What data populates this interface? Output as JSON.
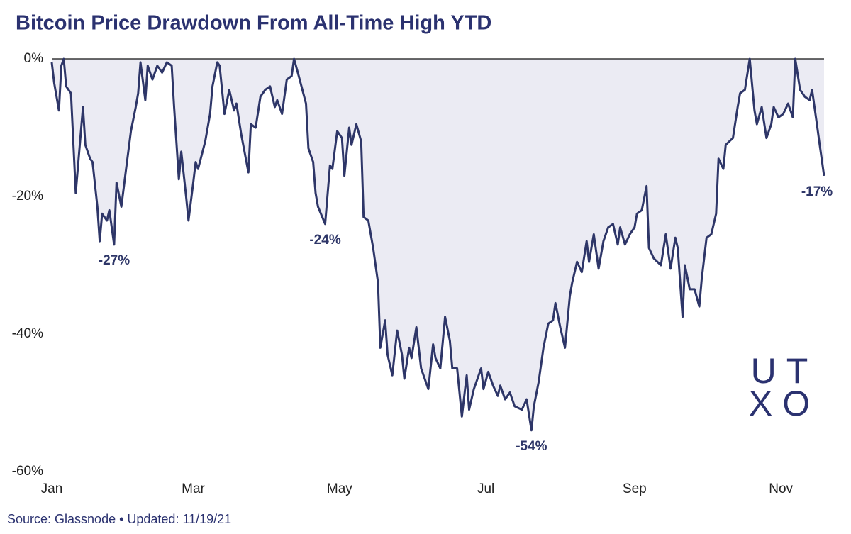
{
  "chart_data": {
    "type": "area",
    "title": "Bitcoin Price Drawdown From All-Time High YTD",
    "source": "Source: Glassnode • Updated: 11/19/21",
    "logo": [
      "UT",
      "XO"
    ],
    "color": "#2e3668",
    "fill": "#ebebf3",
    "xlim": [
      0,
      322
    ],
    "ylim": [
      -60,
      0
    ],
    "xticks": [
      {
        "value": 0,
        "label": "Jan"
      },
      {
        "value": 59,
        "label": "Mar"
      },
      {
        "value": 120,
        "label": "May"
      },
      {
        "value": 181,
        "label": "Jul"
      },
      {
        "value": 243,
        "label": "Sep"
      },
      {
        "value": 304,
        "label": "Nov"
      }
    ],
    "yticks": [
      {
        "value": 0,
        "label": "0%"
      },
      {
        "value": -20,
        "label": "-20%"
      },
      {
        "value": -40,
        "label": "-40%"
      },
      {
        "value": -60,
        "label": "-60%"
      }
    ],
    "x": [
      0,
      1,
      3,
      4,
      5,
      6,
      8,
      10,
      13,
      14,
      16,
      17,
      19,
      20,
      21,
      23,
      24,
      26,
      27,
      29,
      31,
      33,
      35,
      36,
      37,
      39,
      40,
      42,
      44,
      46,
      48,
      50,
      51,
      53,
      54,
      56,
      57,
      59,
      60,
      61,
      64,
      66,
      67,
      69,
      70,
      72,
      74,
      76,
      77,
      79,
      82,
      83,
      85,
      87,
      89,
      91,
      93,
      94,
      96,
      98,
      100,
      101,
      103,
      106,
      107,
      109,
      110,
      111,
      114,
      116,
      117,
      119,
      121,
      122,
      124,
      125,
      127,
      129,
      130,
      132,
      134,
      136,
      137,
      139,
      140,
      142,
      144,
      146,
      147,
      149,
      150,
      152,
      154,
      157,
      159,
      160,
      162,
      164,
      166,
      167,
      169,
      171,
      173,
      174,
      176,
      179,
      180,
      182,
      184,
      186,
      187,
      189,
      191,
      193,
      196,
      198,
      200,
      201,
      203,
      205,
      207,
      209,
      210,
      212,
      214,
      216,
      217,
      219,
      221,
      223,
      224,
      226,
      228,
      230,
      232,
      234,
      236,
      237,
      239,
      241,
      243,
      244,
      246,
      248,
      249,
      251,
      254,
      256,
      258,
      260,
      261,
      263,
      264,
      266,
      268,
      270,
      271,
      273,
      275,
      277,
      278,
      280,
      281,
      284,
      286,
      287,
      289,
      291,
      293,
      294,
      296,
      298,
      300,
      301,
      303,
      305,
      307,
      309,
      310,
      312,
      314,
      316,
      317,
      319,
      320,
      322
    ],
    "values": [
      -0.5,
      -3.5,
      -7.5,
      -1,
      0,
      -4,
      -5,
      -19.5,
      -7,
      -12.5,
      -14.5,
      -15,
      -21.5,
      -26.5,
      -22.5,
      -23.5,
      -22,
      -27,
      -18,
      -21.5,
      -16,
      -10.5,
      -7,
      -5,
      -0.5,
      -6,
      -1,
      -3,
      -1,
      -2,
      -0.5,
      -1,
      -7,
      -17.5,
      -13.5,
      -20,
      -23.5,
      -18,
      -15,
      -16,
      -12,
      -8,
      -4,
      -0.5,
      -1,
      -8,
      -4.5,
      -7.5,
      -6.5,
      -11,
      -16.5,
      -9.5,
      -10,
      -5.5,
      -4.5,
      -4,
      -7,
      -6,
      -8,
      -3,
      -2.5,
      0,
      -2.5,
      -6.5,
      -13,
      -15,
      -19.5,
      -21.5,
      -24,
      -15.5,
      -16,
      -10.5,
      -11.5,
      -17,
      -10,
      -12.5,
      -9.5,
      -12,
      -23,
      -23.5,
      -27.5,
      -32.5,
      -42,
      -38,
      -43,
      -46,
      -39.5,
      -43,
      -46.5,
      -42,
      -43.5,
      -39,
      -45,
      -48,
      -41.5,
      -43.5,
      -45,
      -37.5,
      -41,
      -45,
      -45,
      -52,
      -46,
      -51,
      -48,
      -45,
      -48,
      -45.5,
      -47.5,
      -49,
      -47.5,
      -49.5,
      -48.5,
      -50.5,
      -51,
      -49.5,
      -54,
      -50.5,
      -47,
      -42,
      -38.5,
      -38,
      -35.5,
      -39,
      -42,
      -34.5,
      -32.5,
      -29.5,
      -31,
      -26.5,
      -29.5,
      -25.5,
      -30.5,
      -26.5,
      -24.5,
      -24,
      -27,
      -24.5,
      -27,
      -25.5,
      -24.5,
      -22.5,
      -22,
      -18.5,
      -27.5,
      -29,
      -30,
      -25.5,
      -30.5,
      -26,
      -27.5,
      -37.5,
      -30,
      -33.5,
      -33.5,
      -36,
      -32,
      -26,
      -25.5,
      -22.5,
      -14.5,
      -16,
      -12.5,
      -11.5,
      -7,
      -5,
      -4.5,
      0,
      -7.5,
      -9.5,
      -7,
      -11.5,
      -9.5,
      -7,
      -8.5,
      -8,
      -6.5,
      -8.5,
      0,
      -4.5,
      -5.5,
      -6,
      -4.5,
      -9.5,
      -12,
      -17
    ],
    "annotations": [
      {
        "text": "-27%",
        "x": 26,
        "y": -27
      },
      {
        "text": "-24%",
        "x": 114,
        "y": -24
      },
      {
        "text": "-54%",
        "x": 200,
        "y": -54
      },
      {
        "text": "-17%",
        "x": 322,
        "y": -17
      }
    ]
  }
}
